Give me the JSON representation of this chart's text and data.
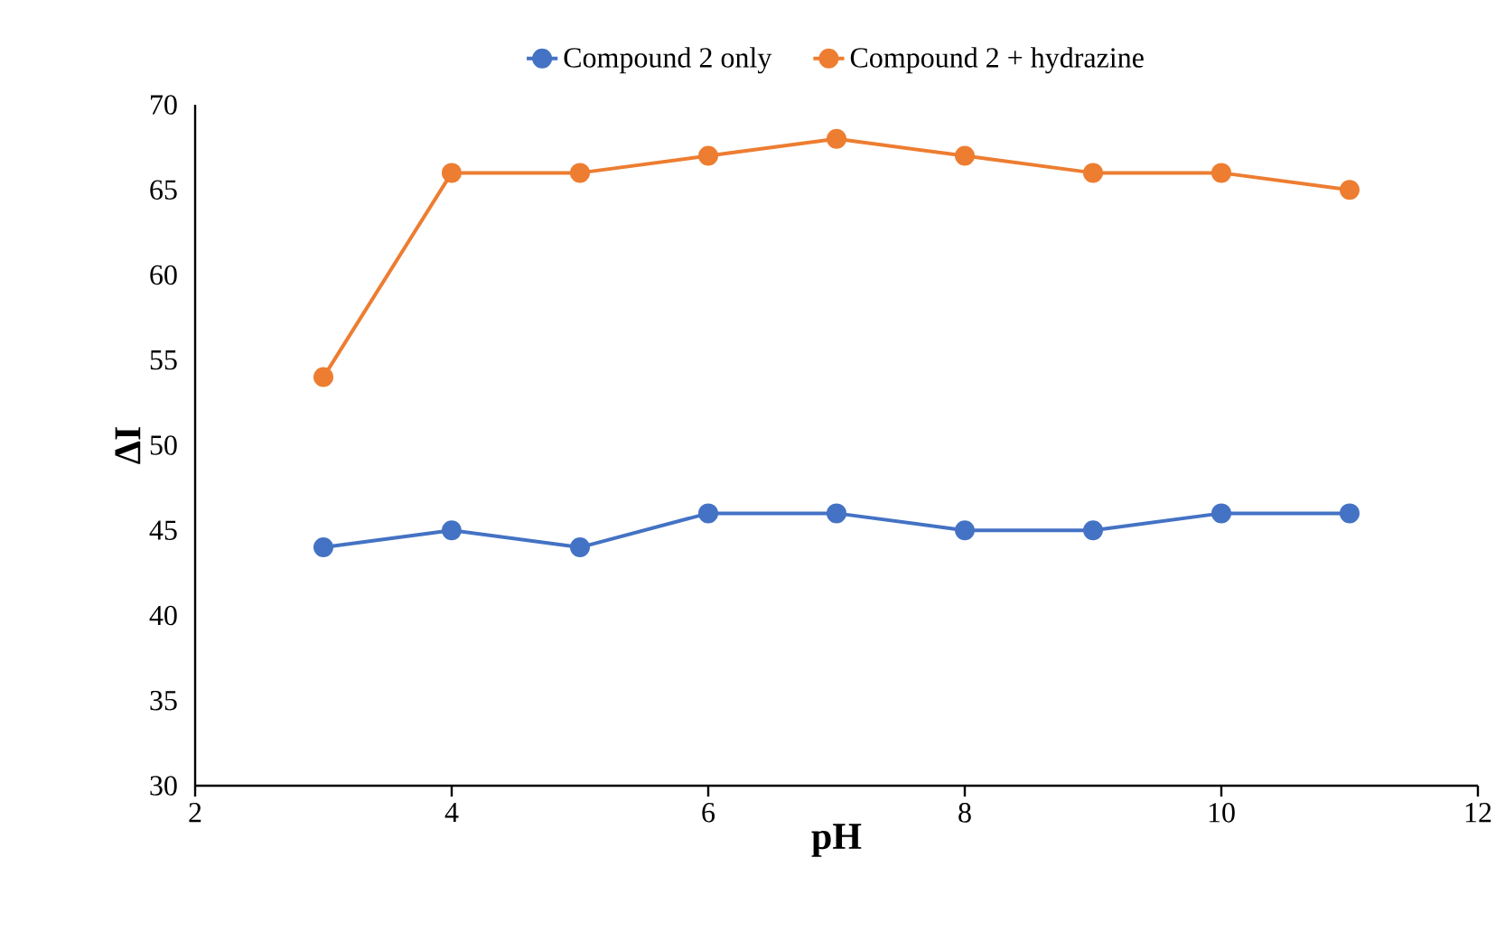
{
  "chart_data": {
    "type": "line",
    "xlabel": "pH",
    "ylabel": "ΔI",
    "x": [
      3,
      4,
      5,
      6,
      7,
      8,
      9,
      10,
      11
    ],
    "series": [
      {
        "name": "Compound 2 only",
        "color": "#4472c4",
        "values": [
          44,
          45,
          44,
          46,
          46,
          45,
          45,
          46,
          46
        ]
      },
      {
        "name": "Compound 2 + hydrazine",
        "color": "#ed7d31",
        "values": [
          54,
          66,
          66,
          67,
          68,
          67,
          66,
          66,
          65
        ]
      }
    ],
    "xlim": [
      2,
      12
    ],
    "xticks": [
      2,
      4,
      6,
      8,
      10,
      12
    ],
    "ylim": [
      30,
      70
    ],
    "yticks": [
      30,
      35,
      40,
      45,
      50,
      55,
      60,
      65,
      70
    ],
    "grid": false,
    "legend": "top",
    "marker": "circle",
    "line_style": "solid"
  }
}
